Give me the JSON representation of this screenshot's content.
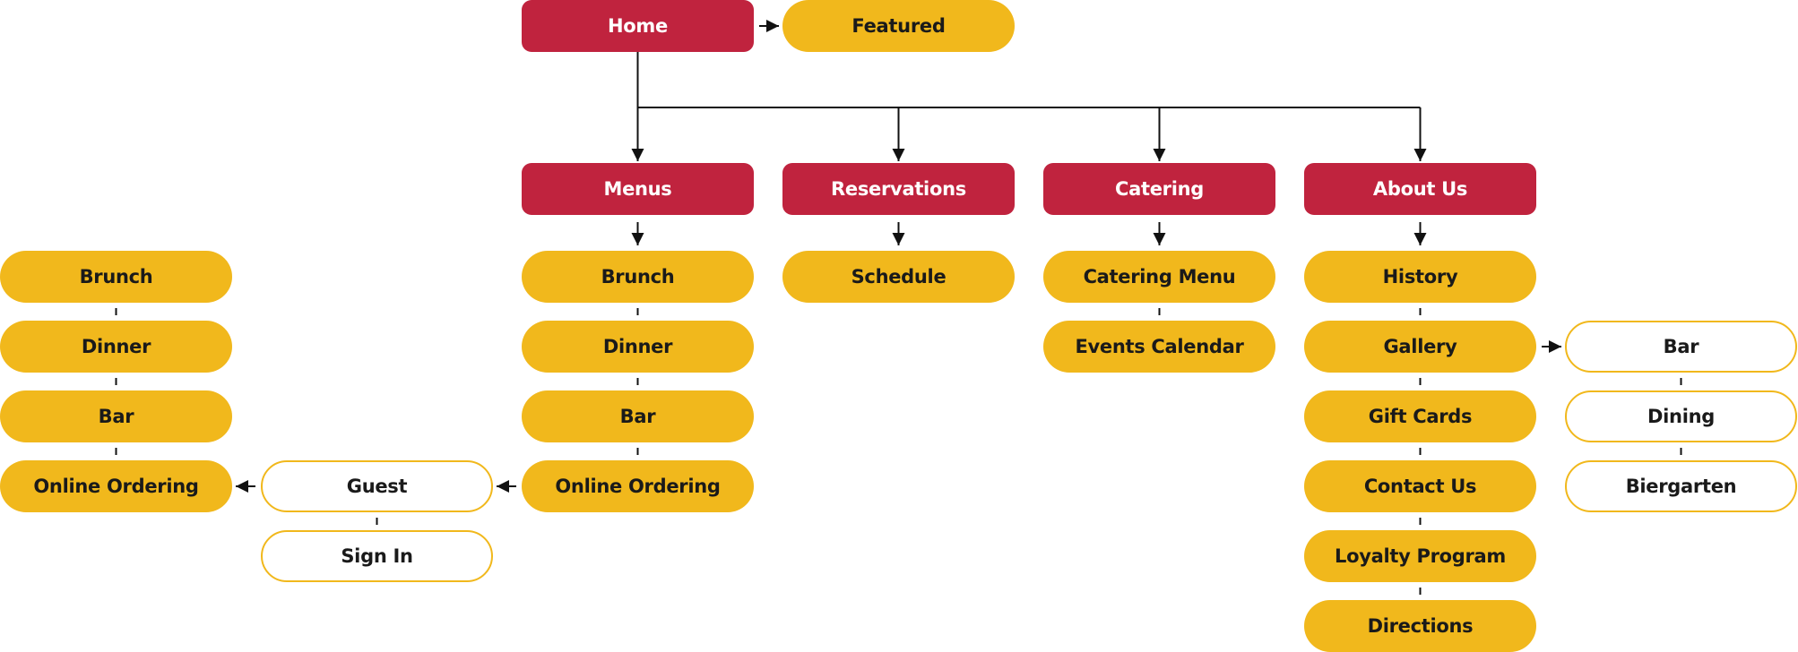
{
  "colors": {
    "primary": "#c0233e",
    "secondary": "#f1b81c",
    "tertiary_border": "#f1b81c",
    "tertiary_fill": "#ffffff",
    "connector": "#111111"
  },
  "nodes": {
    "home": {
      "label": "Home",
      "kind": "primary"
    },
    "featured": {
      "label": "Featured",
      "kind": "secondary"
    },
    "menus": {
      "label": "Menus",
      "kind": "primary"
    },
    "reservations": {
      "label": "Reservations",
      "kind": "primary"
    },
    "catering": {
      "label": "Catering",
      "kind": "primary"
    },
    "about_us": {
      "label": "About Us",
      "kind": "primary"
    },
    "menus_brunch": {
      "label": "Brunch",
      "kind": "secondary"
    },
    "menus_dinner": {
      "label": "Dinner",
      "kind": "secondary"
    },
    "menus_bar": {
      "label": "Bar",
      "kind": "secondary"
    },
    "menus_online_ordering": {
      "label": "Online Ordering",
      "kind": "secondary"
    },
    "guest": {
      "label": "Guest",
      "kind": "tertiary"
    },
    "sign_in": {
      "label": "Sign In",
      "kind": "tertiary"
    },
    "guest_brunch": {
      "label": "Brunch",
      "kind": "secondary"
    },
    "guest_dinner": {
      "label": "Dinner",
      "kind": "secondary"
    },
    "guest_bar": {
      "label": "Bar",
      "kind": "secondary"
    },
    "guest_online_ordering": {
      "label": "Online Ordering",
      "kind": "secondary"
    },
    "schedule": {
      "label": "Schedule",
      "kind": "secondary"
    },
    "catering_menu": {
      "label": "Catering Menu",
      "kind": "secondary"
    },
    "events_calendar": {
      "label": "Events Calendar",
      "kind": "secondary"
    },
    "history": {
      "label": "History",
      "kind": "secondary"
    },
    "gallery": {
      "label": "Gallery",
      "kind": "secondary"
    },
    "gift_cards": {
      "label": "Gift Cards",
      "kind": "secondary"
    },
    "contact_us": {
      "label": "Contact Us",
      "kind": "secondary"
    },
    "loyalty_program": {
      "label": "Loyalty Program",
      "kind": "secondary"
    },
    "directions": {
      "label": "Directions",
      "kind": "secondary"
    },
    "gallery_bar": {
      "label": "Bar",
      "kind": "tertiary"
    },
    "gallery_dining": {
      "label": "Dining",
      "kind": "tertiary"
    },
    "gallery_biergarten": {
      "label": "Biergarten",
      "kind": "tertiary"
    }
  },
  "edges": [
    {
      "from": "home",
      "to": "featured",
      "type": "arrow"
    },
    {
      "from": "home",
      "to": "menus",
      "type": "arrow"
    },
    {
      "from": "home",
      "to": "reservations",
      "type": "arrow"
    },
    {
      "from": "home",
      "to": "catering",
      "type": "arrow"
    },
    {
      "from": "home",
      "to": "about_us",
      "type": "arrow"
    },
    {
      "from": "menus",
      "to": "menus_brunch",
      "type": "arrow"
    },
    {
      "from": "reservations",
      "to": "schedule",
      "type": "arrow"
    },
    {
      "from": "catering",
      "to": "catering_menu",
      "type": "arrow"
    },
    {
      "from": "about_us",
      "to": "history",
      "type": "arrow"
    },
    {
      "from": "menus_brunch",
      "to": "menus_dinner",
      "type": "line"
    },
    {
      "from": "menus_dinner",
      "to": "menus_bar",
      "type": "line"
    },
    {
      "from": "menus_bar",
      "to": "menus_online_ordering",
      "type": "line"
    },
    {
      "from": "menus_online_ordering",
      "to": "guest",
      "type": "arrow"
    },
    {
      "from": "guest",
      "to": "sign_in",
      "type": "line"
    },
    {
      "from": "guest",
      "to": "guest_online_ordering",
      "type": "arrow"
    },
    {
      "from": "guest_brunch",
      "to": "guest_dinner",
      "type": "line"
    },
    {
      "from": "guest_dinner",
      "to": "guest_bar",
      "type": "line"
    },
    {
      "from": "guest_bar",
      "to": "guest_online_ordering",
      "type": "line"
    },
    {
      "from": "catering_menu",
      "to": "events_calendar",
      "type": "line"
    },
    {
      "from": "history",
      "to": "gallery",
      "type": "line"
    },
    {
      "from": "gallery",
      "to": "gift_cards",
      "type": "line"
    },
    {
      "from": "gift_cards",
      "to": "contact_us",
      "type": "line"
    },
    {
      "from": "contact_us",
      "to": "loyalty_program",
      "type": "line"
    },
    {
      "from": "loyalty_program",
      "to": "directions",
      "type": "line"
    },
    {
      "from": "gallery",
      "to": "gallery_bar",
      "type": "arrow"
    },
    {
      "from": "gallery_bar",
      "to": "gallery_dining",
      "type": "line"
    },
    {
      "from": "gallery_dining",
      "to": "gallery_biergarten",
      "type": "line"
    }
  ]
}
